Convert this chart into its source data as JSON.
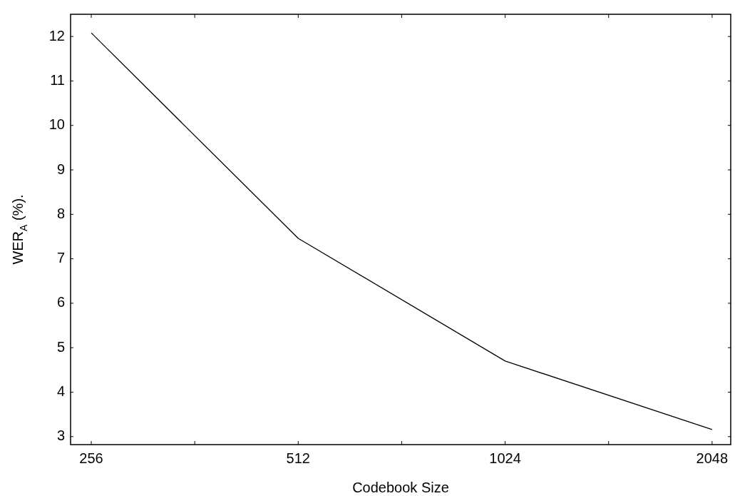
{
  "chart_data": {
    "type": "line",
    "xlabel": "Codebook Size",
    "ylabel": "WER$_{A}$ (%).",
    "categories": [
      "256",
      "512",
      "1024",
      "2048"
    ],
    "series": [
      {
        "color": "#000000",
        "values": [
          12.08,
          7.46,
          4.7,
          3.16
        ]
      }
    ],
    "ylim": [
      2.82,
      12.5
    ],
    "yticks": [
      3,
      4,
      5,
      6,
      7,
      8,
      9,
      10,
      11,
      12
    ],
    "grid": false,
    "legend": false,
    "marker": "none",
    "line_style": "solid"
  }
}
